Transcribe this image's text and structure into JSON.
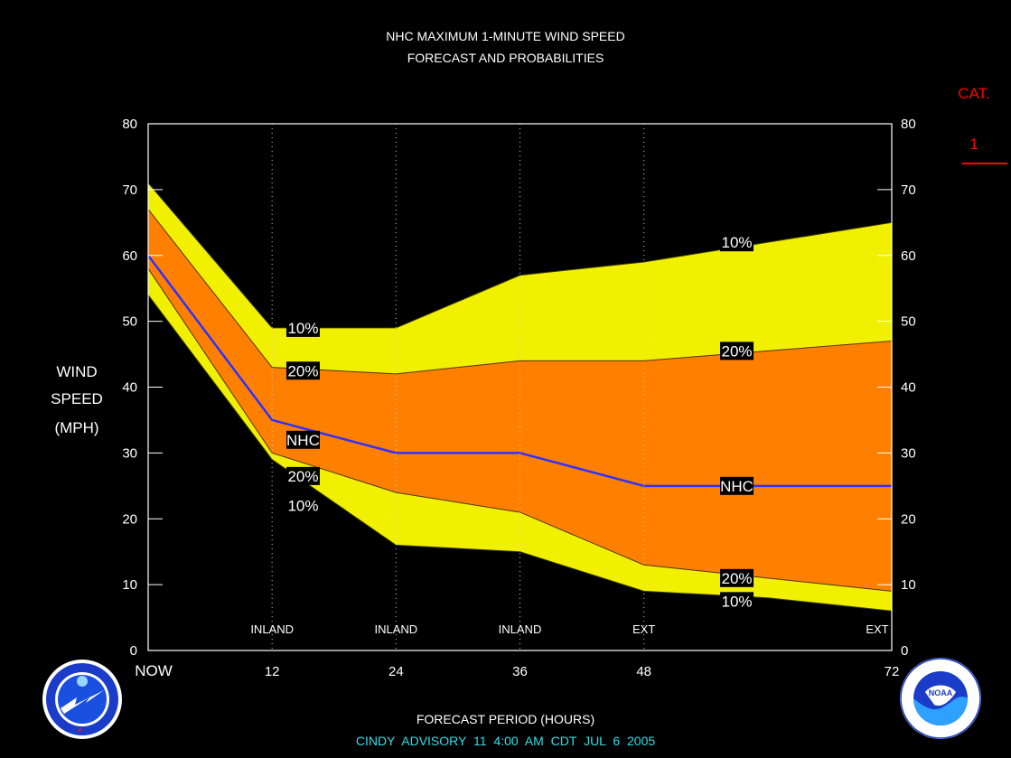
{
  "title_line1": "NHC MAXIMUM 1-MINUTE WIND SPEED",
  "title_line2": "FORECAST AND PROBABILITIES",
  "category": {
    "label": "CAT.",
    "value": "1",
    "color": "#ff0000"
  },
  "y_axis_label": {
    "line1": "WIND",
    "line2": "SPEED",
    "line3": "(MPH)"
  },
  "x_axis_label": "FORECAST PERIOD (HOURS)",
  "advisory": "CINDY   ADVISORY  11  4:00  AM  CDT  JUL  6  2005",
  "logos": {
    "left": "noaa-nws-logo-icon",
    "right": "noaa-logo-icon"
  },
  "colors": {
    "background": "#000000",
    "band_10": "#f0f000",
    "band_20": "#ff8000",
    "nhc_line": "#3030ff",
    "text": "#ffffff",
    "advisory": "#2ce0e8"
  },
  "chart_data": {
    "type": "area",
    "x": [
      0,
      12,
      24,
      36,
      48,
      72
    ],
    "x_tick_labels": [
      "NOW",
      "12",
      "24",
      "36",
      "48",
      "72"
    ],
    "x_tick_values": [
      0,
      12,
      24,
      36,
      48,
      72
    ],
    "ylim": [
      0,
      80
    ],
    "y_ticks": [
      0,
      10,
      20,
      30,
      40,
      50,
      60,
      70,
      80
    ],
    "gridlines_at_x": [
      12,
      24,
      36,
      48
    ],
    "period_annotations": [
      {
        "x": 12,
        "text": "INLAND"
      },
      {
        "x": 24,
        "text": "INLAND"
      },
      {
        "x": 36,
        "text": "INLAND"
      },
      {
        "x": 48,
        "text": "EXT"
      },
      {
        "x": 72,
        "text": "EXT"
      }
    ],
    "series": [
      {
        "key": "upper10",
        "label": "10%",
        "x": [
          0,
          12,
          24,
          36,
          48,
          60,
          72
        ],
        "values": [
          71,
          49,
          49,
          57,
          59,
          62,
          65
        ]
      },
      {
        "key": "upper20",
        "label": "20%",
        "x": [
          0,
          12,
          24,
          36,
          48,
          60,
          72
        ],
        "values": [
          67,
          43,
          42,
          44,
          44,
          45.5,
          47
        ]
      },
      {
        "key": "nhc",
        "label": "NHC",
        "x": [
          0,
          12,
          24,
          36,
          48,
          60,
          72
        ],
        "values": [
          60,
          35,
          30,
          30,
          25,
          25,
          25
        ]
      },
      {
        "key": "lower20",
        "label": "20%",
        "x": [
          0,
          12,
          24,
          36,
          48,
          60,
          72
        ],
        "values": [
          58,
          30,
          24,
          21,
          13,
          11,
          9
        ]
      },
      {
        "key": "lower10",
        "label": "10%",
        "x": [
          0,
          12,
          24,
          36,
          48,
          60,
          72
        ],
        "values": [
          54,
          29,
          16,
          15,
          9,
          8,
          6
        ]
      }
    ],
    "series_labels": [
      {
        "text": "10%",
        "x": 15,
        "y": 49
      },
      {
        "text": "20%",
        "x": 15,
        "y": 42.5
      },
      {
        "text": "NHC",
        "x": 15,
        "y": 32
      },
      {
        "text": "20%",
        "x": 15,
        "y": 26.5
      },
      {
        "text": "10%",
        "x": 15,
        "y": 22
      },
      {
        "text": "10%",
        "x": 57,
        "y": 62
      },
      {
        "text": "20%",
        "x": 57,
        "y": 45.5
      },
      {
        "text": "NHC",
        "x": 57,
        "y": 25
      },
      {
        "text": "20%",
        "x": 57,
        "y": 11
      },
      {
        "text": "10%",
        "x": 57,
        "y": 7.5
      }
    ]
  }
}
